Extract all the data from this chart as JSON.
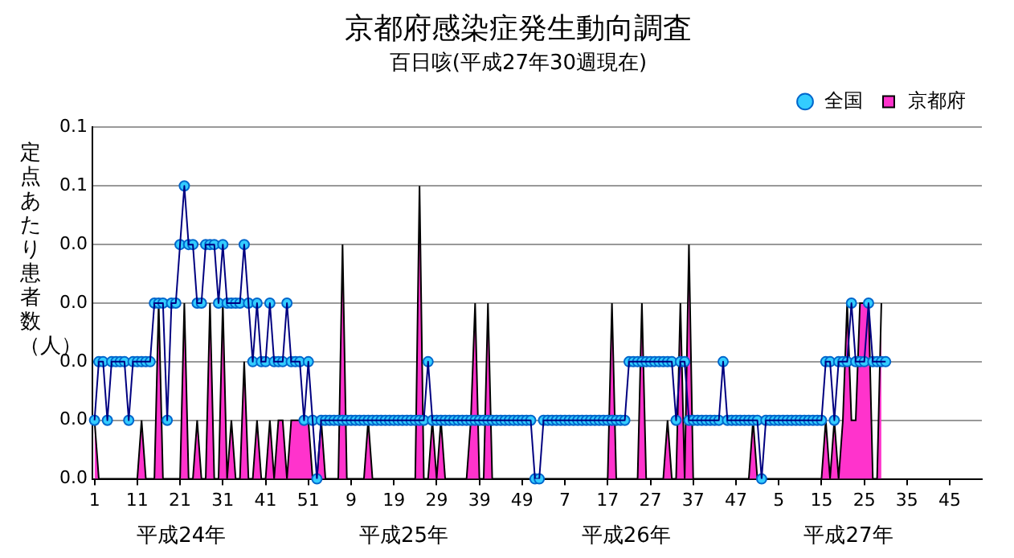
{
  "chart_data": {
    "type": "area",
    "title": "京都府感染症発生動向調査",
    "subtitle": "百日咳(平成27年30週現在)",
    "ylabel": "定点あたり患者数（人）",
    "categories": [
      "1",
      null,
      null,
      null,
      null,
      null,
      null,
      null,
      null,
      null,
      "11",
      null,
      null,
      null,
      null,
      null,
      null,
      null,
      null,
      null,
      "21",
      null,
      null,
      null,
      null,
      null,
      null,
      null,
      null,
      null,
      "31",
      null,
      null,
      null,
      null,
      null,
      null,
      null,
      null,
      null,
      "41",
      null,
      null,
      null,
      null,
      null,
      null,
      null,
      null,
      null,
      "51",
      null,
      null,
      null,
      null,
      null,
      null,
      null,
      null,
      null,
      "9",
      null,
      null,
      null,
      null,
      null,
      null,
      null,
      null,
      null,
      "19",
      null,
      null,
      null,
      null,
      null,
      null,
      null,
      null,
      null,
      "29",
      null,
      null,
      null,
      null,
      null,
      null,
      null,
      null,
      null,
      "39",
      null,
      null,
      null,
      null,
      null,
      null,
      null,
      null,
      null,
      "49",
      null,
      null,
      null,
      null,
      null,
      null,
      null,
      null,
      null,
      "7",
      null,
      null,
      null,
      null,
      null,
      null,
      null,
      null,
      null,
      "17",
      null,
      null,
      null,
      null,
      null,
      null,
      null,
      null,
      null,
      "27",
      null,
      null,
      null,
      null,
      null,
      null,
      null,
      null,
      null,
      "37",
      null,
      null,
      null,
      null,
      null,
      null,
      null,
      null,
      null,
      "47",
      null,
      null,
      null,
      null,
      null,
      null,
      null,
      null,
      null,
      "5",
      null,
      null,
      null,
      null,
      null,
      null,
      null,
      null,
      null,
      "15",
      null,
      null,
      null,
      null,
      null,
      null,
      null,
      null,
      null,
      "25",
      null,
      null,
      null,
      null,
      null,
      null,
      null,
      null,
      null,
      "35",
      null,
      null,
      null,
      null,
      null,
      null,
      null,
      null,
      null,
      "45",
      null,
      null,
      null,
      null,
      null,
      null,
      null
    ],
    "series": [
      {
        "name": "京都府",
        "color": "#ff33cc",
        "values": [
          0.01,
          0,
          0,
          0,
          0,
          0,
          0,
          0,
          0,
          0,
          0,
          0.01,
          0,
          0,
          0,
          0.03,
          0,
          0,
          0,
          0,
          0,
          0.03,
          0,
          0,
          0.01,
          0,
          0,
          0.03,
          0,
          0,
          0.03,
          0,
          0.01,
          0,
          0,
          0.02,
          0,
          0,
          0.01,
          0,
          0,
          0.01,
          0,
          0.01,
          0.01,
          0,
          0.01,
          0.01,
          0.01,
          0.01,
          0.01,
          0,
          0,
          0.01,
          0,
          0,
          0,
          0,
          0.04,
          0,
          0,
          0,
          0,
          0,
          0.01,
          0,
          0,
          0,
          0,
          0,
          0,
          0,
          0,
          0,
          0,
          0,
          0.05,
          0,
          0,
          0.01,
          0,
          0.01,
          0,
          0,
          0,
          0,
          0,
          0,
          0.01,
          0.03,
          0,
          0,
          0.03,
          0,
          0,
          0,
          0,
          0,
          0,
          0,
          0,
          0,
          0,
          0,
          0,
          0,
          0,
          0,
          0,
          0,
          0,
          0,
          0,
          0,
          0,
          0,
          0,
          0,
          0,
          0,
          0,
          0.03,
          0,
          0,
          0,
          0,
          0,
          0,
          0.03,
          0,
          0,
          0,
          0,
          0,
          0.01,
          0,
          0,
          0.03,
          0,
          0.04,
          0,
          0,
          0,
          0,
          0,
          0,
          0,
          0,
          0,
          0,
          0,
          0,
          0,
          0,
          0.01,
          0,
          0,
          0,
          0,
          0,
          0,
          0,
          0,
          0,
          0,
          0,
          0,
          0,
          0,
          0,
          0,
          0.01,
          0,
          0.01,
          0,
          0.01,
          0.03,
          0.01,
          0.01,
          0.03,
          0.03,
          0.03,
          0,
          0,
          0.03,
          null,
          null,
          null,
          null,
          null,
          null,
          null,
          null,
          null,
          null,
          null,
          null,
          null,
          null,
          null,
          null,
          null,
          null,
          null,
          null,
          null,
          null,
          null
        ]
      },
      {
        "name": "全国",
        "type": "line",
        "marker": "circle",
        "color": "#33ccff",
        "values": [
          0.01,
          0.02,
          0.02,
          0.01,
          0.02,
          0.02,
          0.02,
          0.02,
          0.01,
          0.02,
          0.02,
          0.02,
          0.02,
          0.02,
          0.03,
          0.03,
          0.03,
          0.01,
          0.03,
          0.03,
          0.04,
          0.05,
          0.04,
          0.04,
          0.03,
          0.03,
          0.04,
          0.04,
          0.04,
          0.03,
          0.04,
          0.03,
          0.03,
          0.03,
          0.03,
          0.04,
          0.03,
          0.02,
          0.03,
          0.02,
          0.02,
          0.03,
          0.02,
          0.02,
          0.02,
          0.03,
          0.02,
          0.02,
          0.02,
          0.01,
          0.02,
          0.01,
          0,
          0.01,
          0.01,
          0.01,
          0.01,
          0.01,
          0.01,
          0.01,
          0.01,
          0.01,
          0.01,
          0.01,
          0.01,
          0.01,
          0.01,
          0.01,
          0.01,
          0.01,
          0.01,
          0.01,
          0.01,
          0.01,
          0.01,
          0.01,
          0.01,
          0.01,
          0.02,
          0.01,
          0.01,
          0.01,
          0.01,
          0.01,
          0.01,
          0.01,
          0.01,
          0.01,
          0.01,
          0.01,
          0.01,
          0.01,
          0.01,
          0.01,
          0.01,
          0.01,
          0.01,
          0.01,
          0.01,
          0.01,
          0.01,
          0.01,
          0.01,
          0,
          0,
          0.01,
          0.01,
          0.01,
          0.01,
          0.01,
          0.01,
          0.01,
          0.01,
          0.01,
          0.01,
          0.01,
          0.01,
          0.01,
          0.01,
          0.01,
          0.01,
          0.01,
          0.01,
          0.01,
          0.01,
          0.02,
          0.02,
          0.02,
          0.02,
          0.02,
          0.02,
          0.02,
          0.02,
          0.02,
          0.02,
          0.02,
          0.01,
          0.02,
          0.02,
          0.01,
          0.01,
          0.01,
          0.01,
          0.01,
          0.01,
          0.01,
          0.01,
          0.02,
          0.01,
          0.01,
          0.01,
          0.01,
          0.01,
          0.01,
          0.01,
          0.01,
          0,
          0.01,
          0.01,
          0.01,
          0.01,
          0.01,
          0.01,
          0.01,
          0.01,
          0.01,
          0.01,
          0.01,
          0.01,
          0.01,
          0.01,
          0.02,
          0.02,
          0.01,
          0.02,
          0.02,
          0.02,
          0.03,
          0.02,
          0.02,
          0.02,
          0.03,
          0.02,
          0.02,
          0.02,
          0.02,
          null,
          null,
          null,
          null,
          null,
          null,
          null,
          null,
          null,
          null,
          null,
          null,
          null,
          null,
          null,
          null,
          null,
          null,
          null,
          null,
          null,
          null
        ]
      }
    ],
    "ylim": [
      0,
      0.06
    ],
    "yticks": [
      {
        "value": 0,
        "label": "0.0"
      },
      {
        "value": 0.01,
        "label": "0.0"
      },
      {
        "value": 0.02,
        "label": "0.0"
      },
      {
        "value": 0.03,
        "label": "0.0"
      },
      {
        "value": 0.04,
        "label": "0.0"
      },
      {
        "value": 0.05,
        "label": "0.1"
      },
      {
        "value": 0.06,
        "label": "0.1"
      }
    ],
    "grid": "y",
    "legend": "top right",
    "annotations": [
      "平成24年",
      "平成25年",
      "平成26年",
      "平成27年"
    ]
  }
}
